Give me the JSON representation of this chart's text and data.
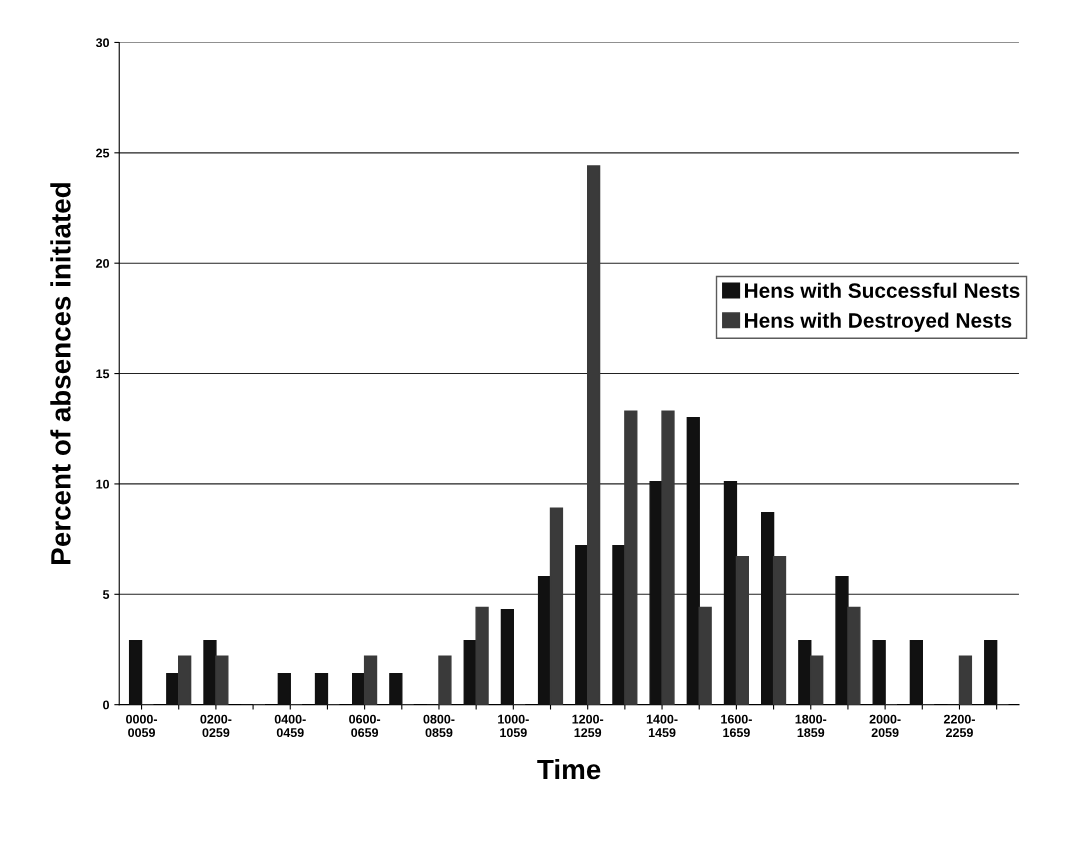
{
  "chart_data": {
    "type": "bar",
    "xlabel": "Time",
    "ylabel": "Percent of absences initiated",
    "categories": [
      "0000-\n0059",
      null,
      "0200-\n0259",
      null,
      "0400-\n0459",
      null,
      "0600-\n0659",
      null,
      "0800-\n0859",
      null,
      "1000-\n1059",
      null,
      "1200-\n1259",
      null,
      "1400-\n1459",
      null,
      "1600-\n1659",
      null,
      "1800-\n1859",
      null,
      "2000-\n2059",
      null,
      "2200-\n2259",
      null
    ],
    "series": [
      {
        "name": "Hens with Successful Nests",
        "color": "#111111",
        "values": [
          2.9,
          1.4,
          2.9,
          0,
          1.4,
          1.4,
          1.4,
          1.4,
          0,
          2.9,
          4.3,
          5.8,
          7.2,
          7.2,
          10.1,
          13.0,
          10.1,
          8.7,
          2.9,
          5.8,
          2.9,
          2.9,
          0,
          2.9
        ]
      },
      {
        "name": "Hens with Destroyed Nests",
        "color": "#3a3a3a",
        "values": [
          0,
          2.2,
          2.2,
          0,
          0,
          0,
          2.2,
          0,
          2.2,
          4.4,
          0,
          8.9,
          24.4,
          13.3,
          13.3,
          4.4,
          6.7,
          6.7,
          2.2,
          4.4,
          0,
          0,
          2.2,
          0
        ]
      }
    ],
    "ylim": [
      0,
      30
    ],
    "yticks": [
      0,
      5,
      10,
      15,
      20,
      25,
      30
    ],
    "grid": "y",
    "legend": "right"
  }
}
